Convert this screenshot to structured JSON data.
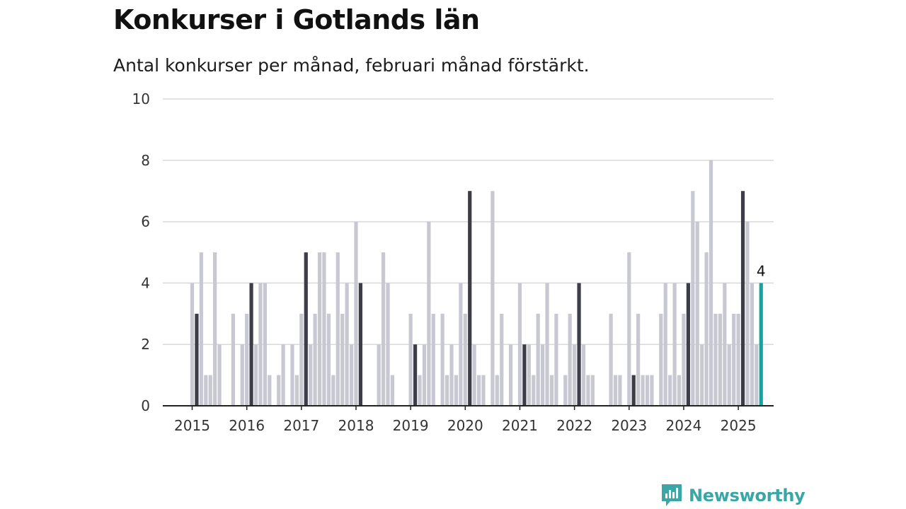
{
  "header": {
    "title": "Konkurser i Gotlands län",
    "subtitle": "Antal konkurser per månad, februari månad förstärkt."
  },
  "brand": {
    "name": "Newsworthy"
  },
  "colors": {
    "bar_default": "#c8c8d2",
    "bar_february": "#3d3d4a",
    "bar_latest": "#14a5a0",
    "grid": "#d9d9d9",
    "axis": "#222222",
    "brand": "#3aa6a6"
  },
  "chart_data": {
    "type": "bar",
    "start": "2015-01",
    "highlight_month": "February",
    "ylim": [
      0,
      10
    ],
    "yticks": [
      0,
      2,
      4,
      6,
      8,
      10
    ],
    "xticks": [
      "2015",
      "2016",
      "2017",
      "2018",
      "2019",
      "2020",
      "2021",
      "2022",
      "2023",
      "2024",
      "2025"
    ],
    "latest_label": "4",
    "values": [
      4,
      3,
      5,
      1,
      1,
      5,
      2,
      0,
      0,
      3,
      0,
      2,
      3,
      4,
      2,
      4,
      4,
      1,
      0,
      1,
      2,
      0,
      2,
      1,
      3,
      5,
      2,
      3,
      5,
      5,
      3,
      1,
      5,
      3,
      4,
      2,
      6,
      4,
      0,
      0,
      0,
      2,
      5,
      4,
      1,
      0,
      0,
      0,
      3,
      2,
      1,
      2,
      6,
      3,
      0,
      3,
      1,
      2,
      1,
      4,
      3,
      7,
      2,
      1,
      1,
      0,
      7,
      1,
      3,
      0,
      2,
      0,
      4,
      2,
      2,
      1,
      3,
      2,
      4,
      1,
      3,
      0,
      1,
      3,
      2,
      4,
      2,
      1,
      1,
      0,
      0,
      0,
      3,
      1,
      1,
      0,
      5,
      1,
      3,
      1,
      1,
      1,
      0,
      3,
      4,
      1,
      4,
      1,
      3,
      4,
      7,
      6,
      2,
      5,
      8,
      3,
      3,
      4,
      2,
      3,
      3,
      7,
      6,
      4,
      2,
      4
    ]
  }
}
